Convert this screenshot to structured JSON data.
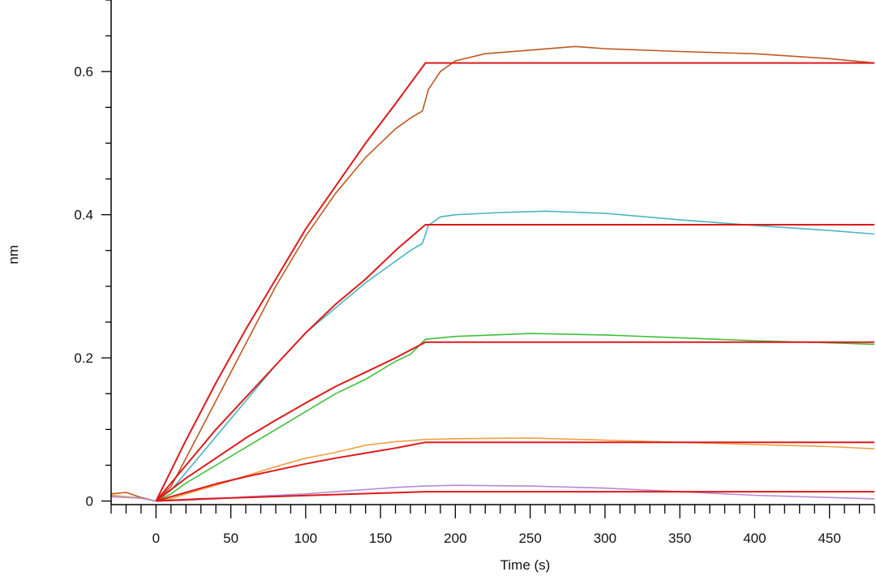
{
  "chart_data": {
    "type": "line",
    "title": "",
    "xlabel": "Time (s)",
    "ylabel": "nm",
    "xlim": [
      -30,
      480
    ],
    "ylim": [
      -0.005,
      0.7
    ],
    "x_ticks": [
      0,
      50,
      100,
      150,
      200,
      250,
      300,
      350,
      400,
      450
    ],
    "x_tick_labels": [
      "0",
      "50",
      "100",
      "150",
      "200",
      "250",
      "300",
      "350",
      "400",
      "450"
    ],
    "y_ticks": [
      0,
      0.2,
      0.4,
      0.6
    ],
    "y_tick_labels": [
      "0",
      "0.2",
      "0.4",
      "0.6"
    ],
    "grid": false,
    "legend": "none",
    "series": [
      {
        "role": "measured",
        "color": "#c0581f",
        "x": [
          -30,
          -20,
          -10,
          0,
          10,
          20,
          40,
          60,
          80,
          100,
          120,
          140,
          160,
          170,
          178,
          180,
          182,
          190,
          200,
          220,
          250,
          280,
          300,
          350,
          400,
          450,
          480
        ],
        "y": [
          0.01,
          0.012,
          0.005,
          0.0,
          0.02,
          0.06,
          0.14,
          0.22,
          0.3,
          0.37,
          0.43,
          0.48,
          0.52,
          0.535,
          0.545,
          0.56,
          0.575,
          0.6,
          0.615,
          0.625,
          0.63,
          0.635,
          0.632,
          0.628,
          0.625,
          0.618,
          0.612
        ]
      },
      {
        "role": "fit",
        "color": "#dd1a1a",
        "x": [
          0,
          20,
          40,
          60,
          80,
          100,
          120,
          140,
          160,
          180,
          480
        ],
        "y": [
          0.0,
          0.085,
          0.165,
          0.24,
          0.31,
          0.38,
          0.44,
          0.5,
          0.555,
          0.612,
          0.612
        ]
      },
      {
        "role": "measured",
        "color": "#4ab5c4",
        "x": [
          -30,
          -10,
          0,
          10,
          20,
          40,
          60,
          80,
          100,
          120,
          140,
          160,
          170,
          178,
          182,
          190,
          200,
          230,
          260,
          300,
          350,
          400,
          450,
          480
        ],
        "y": [
          0.008,
          0.004,
          0.0,
          0.015,
          0.04,
          0.09,
          0.14,
          0.19,
          0.235,
          0.27,
          0.305,
          0.335,
          0.35,
          0.36,
          0.385,
          0.397,
          0.4,
          0.403,
          0.405,
          0.402,
          0.393,
          0.385,
          0.378,
          0.373
        ]
      },
      {
        "role": "fit",
        "color": "#dd1a1a",
        "x": [
          0,
          20,
          40,
          60,
          80,
          100,
          120,
          140,
          160,
          180,
          480
        ],
        "y": [
          0.0,
          0.05,
          0.1,
          0.145,
          0.19,
          0.235,
          0.275,
          0.31,
          0.35,
          0.386,
          0.386
        ]
      },
      {
        "role": "measured",
        "color": "#3fbf3a",
        "x": [
          -30,
          -10,
          0,
          10,
          20,
          40,
          60,
          80,
          100,
          120,
          140,
          160,
          170,
          180,
          200,
          250,
          300,
          350,
          400,
          450,
          480
        ],
        "y": [
          0.008,
          0.004,
          0.0,
          0.01,
          0.025,
          0.05,
          0.075,
          0.1,
          0.125,
          0.15,
          0.17,
          0.195,
          0.205,
          0.226,
          0.23,
          0.234,
          0.232,
          0.228,
          0.224,
          0.221,
          0.219
        ]
      },
      {
        "role": "fit",
        "color": "#dd1a1a",
        "x": [
          0,
          20,
          40,
          60,
          80,
          100,
          120,
          140,
          160,
          180,
          480
        ],
        "y": [
          0.0,
          0.032,
          0.06,
          0.088,
          0.113,
          0.137,
          0.16,
          0.18,
          0.2,
          0.222,
          0.222
        ]
      },
      {
        "role": "measured",
        "color": "#f0a142",
        "x": [
          -30,
          -10,
          0,
          10,
          20,
          40,
          60,
          80,
          100,
          120,
          140,
          160,
          180,
          200,
          250,
          300,
          350,
          400,
          450,
          480
        ],
        "y": [
          0.008,
          0.004,
          0.0,
          0.003,
          0.01,
          0.022,
          0.035,
          0.048,
          0.06,
          0.068,
          0.078,
          0.083,
          0.086,
          0.087,
          0.088,
          0.085,
          0.082,
          0.079,
          0.076,
          0.073
        ]
      },
      {
        "role": "fit",
        "color": "#dd1a1a",
        "x": [
          0,
          20,
          40,
          60,
          80,
          100,
          120,
          140,
          160,
          180,
          480
        ],
        "y": [
          0.0,
          0.012,
          0.024,
          0.034,
          0.043,
          0.052,
          0.06,
          0.067,
          0.074,
          0.082,
          0.082
        ]
      },
      {
        "role": "measured",
        "color": "#b58ad6",
        "x": [
          -30,
          -10,
          0,
          20,
          40,
          60,
          80,
          100,
          120,
          140,
          160,
          180,
          200,
          250,
          300,
          350,
          400,
          450,
          480
        ],
        "y": [
          0.006,
          0.004,
          0.0,
          0.001,
          0.003,
          0.006,
          0.008,
          0.01,
          0.013,
          0.016,
          0.019,
          0.021,
          0.022,
          0.021,
          0.018,
          0.013,
          0.008,
          0.005,
          0.003
        ]
      },
      {
        "role": "fit",
        "color": "#dd1a1a",
        "x": [
          0,
          30,
          60,
          90,
          120,
          150,
          180,
          480
        ],
        "y": [
          0.0,
          0.003,
          0.005,
          0.007,
          0.009,
          0.011,
          0.013,
          0.013
        ]
      }
    ]
  }
}
